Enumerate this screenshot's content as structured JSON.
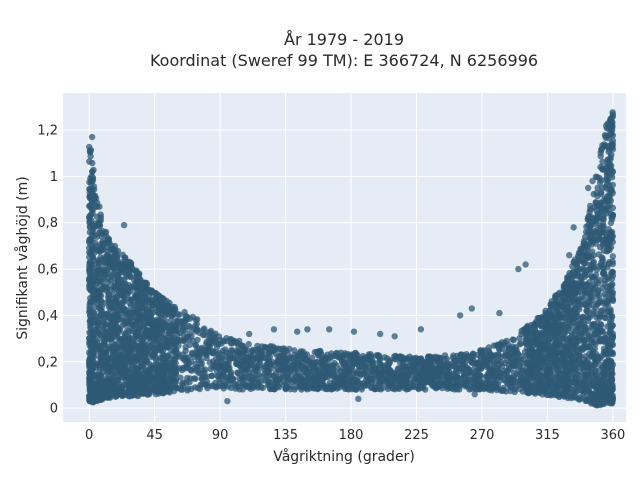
{
  "chart_data": {
    "type": "scatter",
    "title": "År 1979 - 2019",
    "subtitle": "Koordinat (Sweref 99 TM): E 366724, N 6256996",
    "xlabel": "Vågriktning (grader)",
    "ylabel": "Signifikant våghöjd (m)",
    "xlim": [
      -18,
      369
    ],
    "ylim": [
      -0.06,
      1.36
    ],
    "xticks": [
      0,
      45,
      90,
      135,
      180,
      225,
      270,
      315,
      360
    ],
    "yticks": [
      0,
      0.2,
      0.4,
      0.6,
      0.8,
      1,
      1.2
    ],
    "ytick_labels": [
      "0",
      "0,2",
      "0,4",
      "0,6",
      "0,8",
      "1",
      "1,2"
    ],
    "grid": true,
    "point_color": "#2f5a75",
    "background_color": "#e5ecf6",
    "envelope": {
      "x": [
        0,
        5,
        10,
        20,
        30,
        45,
        60,
        75,
        90,
        110,
        135,
        160,
        180,
        200,
        225,
        250,
        270,
        290,
        310,
        320,
        330,
        340,
        345,
        350,
        355,
        360
      ],
      "y_upper": [
        1.17,
        0.95,
        0.78,
        0.68,
        0.62,
        0.5,
        0.44,
        0.38,
        0.31,
        0.28,
        0.26,
        0.25,
        0.24,
        0.23,
        0.22,
        0.23,
        0.25,
        0.3,
        0.4,
        0.48,
        0.58,
        0.75,
        0.9,
        1.05,
        1.22,
        1.3
      ],
      "y_lower": [
        0.02,
        0.03,
        0.04,
        0.05,
        0.05,
        0.06,
        0.07,
        0.08,
        0.08,
        0.08,
        0.08,
        0.08,
        0.08,
        0.08,
        0.08,
        0.08,
        0.08,
        0.07,
        0.06,
        0.05,
        0.04,
        0.03,
        0.02,
        0.01,
        0.02,
        0.02
      ]
    },
    "outliers": [
      {
        "x": 2,
        "y": 1.17
      },
      {
        "x": 24,
        "y": 0.79
      },
      {
        "x": 110,
        "y": 0.32
      },
      {
        "x": 127,
        "y": 0.34
      },
      {
        "x": 143,
        "y": 0.33
      },
      {
        "x": 150,
        "y": 0.34
      },
      {
        "x": 165,
        "y": 0.34
      },
      {
        "x": 182,
        "y": 0.33
      },
      {
        "x": 200,
        "y": 0.32
      },
      {
        "x": 210,
        "y": 0.31
      },
      {
        "x": 228,
        "y": 0.34
      },
      {
        "x": 255,
        "y": 0.4
      },
      {
        "x": 263,
        "y": 0.43
      },
      {
        "x": 282,
        "y": 0.41
      },
      {
        "x": 295,
        "y": 0.6
      },
      {
        "x": 300,
        "y": 0.62
      },
      {
        "x": 330,
        "y": 0.66
      },
      {
        "x": 333,
        "y": 0.78
      },
      {
        "x": 340,
        "y": 0.66
      },
      {
        "x": 343,
        "y": 0.95
      },
      {
        "x": 346,
        "y": 0.98
      },
      {
        "x": 185,
        "y": 0.04
      },
      {
        "x": 265,
        "y": 0.06
      },
      {
        "x": 95,
        "y": 0.03
      }
    ]
  }
}
